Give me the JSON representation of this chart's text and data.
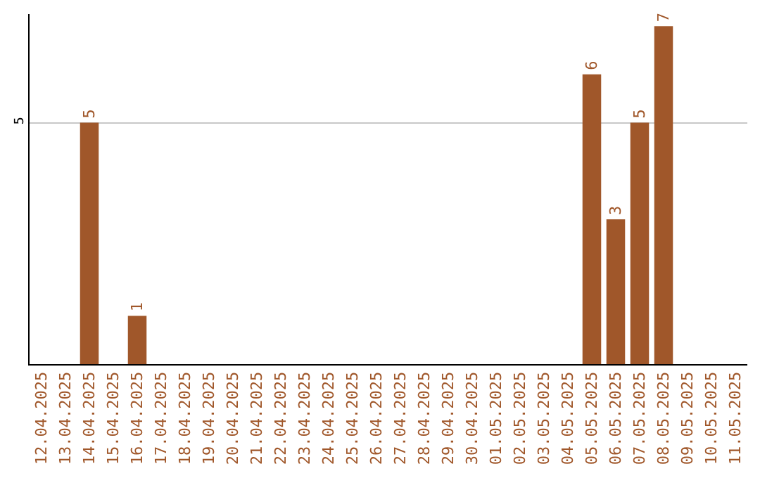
{
  "chart_data": {
    "type": "bar",
    "categories": [
      "12.04.2025",
      "13.04.2025",
      "14.04.2025",
      "15.04.2025",
      "16.04.2025",
      "17.04.2025",
      "18.04.2025",
      "19.04.2025",
      "20.04.2025",
      "21.04.2025",
      "22.04.2025",
      "23.04.2025",
      "24.04.2025",
      "25.04.2025",
      "26.04.2025",
      "27.04.2025",
      "28.04.2025",
      "29.04.2025",
      "30.04.2025",
      "01.05.2025",
      "02.05.2025",
      "03.05.2025",
      "04.05.2025",
      "05.05.2025",
      "06.05.2025",
      "07.05.2025",
      "08.05.2025",
      "09.05.2025",
      "10.05.2025",
      "11.05.2025"
    ],
    "values": [
      0,
      0,
      5,
      0,
      1,
      0,
      0,
      0,
      0,
      0,
      0,
      0,
      0,
      0,
      0,
      0,
      0,
      0,
      0,
      0,
      0,
      0,
      0,
      6,
      3,
      5,
      7,
      0,
      0,
      0
    ],
    "value_labels": [
      null,
      null,
      "5",
      null,
      "1",
      null,
      null,
      null,
      null,
      null,
      null,
      null,
      null,
      null,
      null,
      null,
      null,
      null,
      null,
      null,
      null,
      null,
      null,
      "6",
      "3",
      "5",
      "7",
      null,
      null,
      null
    ],
    "color": "#a0572a",
    "ylim": [
      0,
      7.25
    ],
    "yticks": [
      5
    ],
    "grid": "y",
    "legend": false
  }
}
